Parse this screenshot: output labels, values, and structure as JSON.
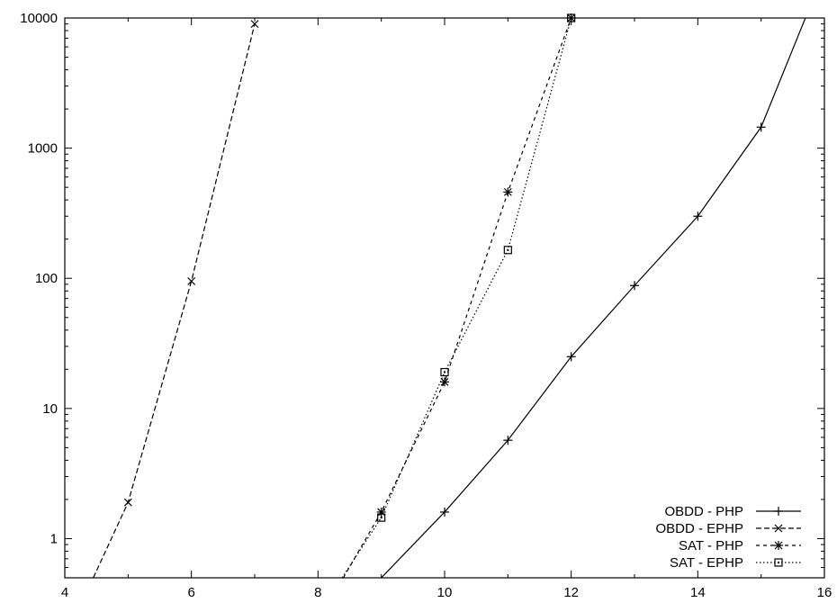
{
  "chart_data": {
    "type": "line",
    "title": "",
    "xlabel": "",
    "ylabel": "",
    "xlim": [
      4,
      16
    ],
    "ylim": [
      0.5,
      10000
    ],
    "yscale": "log",
    "grid": false,
    "legend_position": "bottom-right",
    "x_ticks": [
      4,
      6,
      8,
      10,
      12,
      14,
      16
    ],
    "x_tick_labels": [
      "4",
      "6",
      "8",
      "10",
      "12",
      "14",
      "16"
    ],
    "y_ticks": [
      1,
      10,
      100,
      1000,
      10000
    ],
    "y_tick_labels": [
      "1",
      "10",
      "100",
      "1000",
      "10000"
    ],
    "series": [
      {
        "name": "OBDD - PHP",
        "line_style": "solid",
        "marker": "plus",
        "color": "#000000",
        "points": [
          [
            9.0,
            0.5
          ],
          [
            10,
            1.6
          ],
          [
            11,
            5.7
          ],
          [
            12,
            25
          ],
          [
            13,
            88
          ],
          [
            14,
            300
          ],
          [
            15,
            1450
          ],
          [
            15.7,
            10000
          ]
        ],
        "marked": [
          false,
          true,
          true,
          true,
          true,
          true,
          true,
          false
        ]
      },
      {
        "name": "OBDD - EPHP",
        "line_style": "dashed",
        "marker": "x",
        "color": "#000000",
        "points": [
          [
            4.45,
            0.5
          ],
          [
            5,
            1.9
          ],
          [
            6,
            95
          ],
          [
            7,
            9000
          ]
        ],
        "marked": [
          false,
          true,
          true,
          true
        ]
      },
      {
        "name": "SAT - PHP",
        "line_style": "short-dashed",
        "marker": "star",
        "color": "#000000",
        "points": [
          [
            8.4,
            0.5
          ],
          [
            9,
            1.6
          ],
          [
            10,
            16
          ],
          [
            11,
            460
          ],
          [
            12,
            10000
          ]
        ],
        "marked": [
          false,
          true,
          true,
          true,
          true
        ]
      },
      {
        "name": "SAT - EPHP",
        "line_style": "dotted",
        "marker": "square",
        "color": "#000000",
        "points": [
          [
            8.38,
            0.5
          ],
          [
            9,
            1.45
          ],
          [
            10,
            19
          ],
          [
            11,
            165
          ],
          [
            12,
            10000
          ]
        ],
        "marked": [
          false,
          true,
          true,
          true,
          true
        ]
      }
    ]
  }
}
